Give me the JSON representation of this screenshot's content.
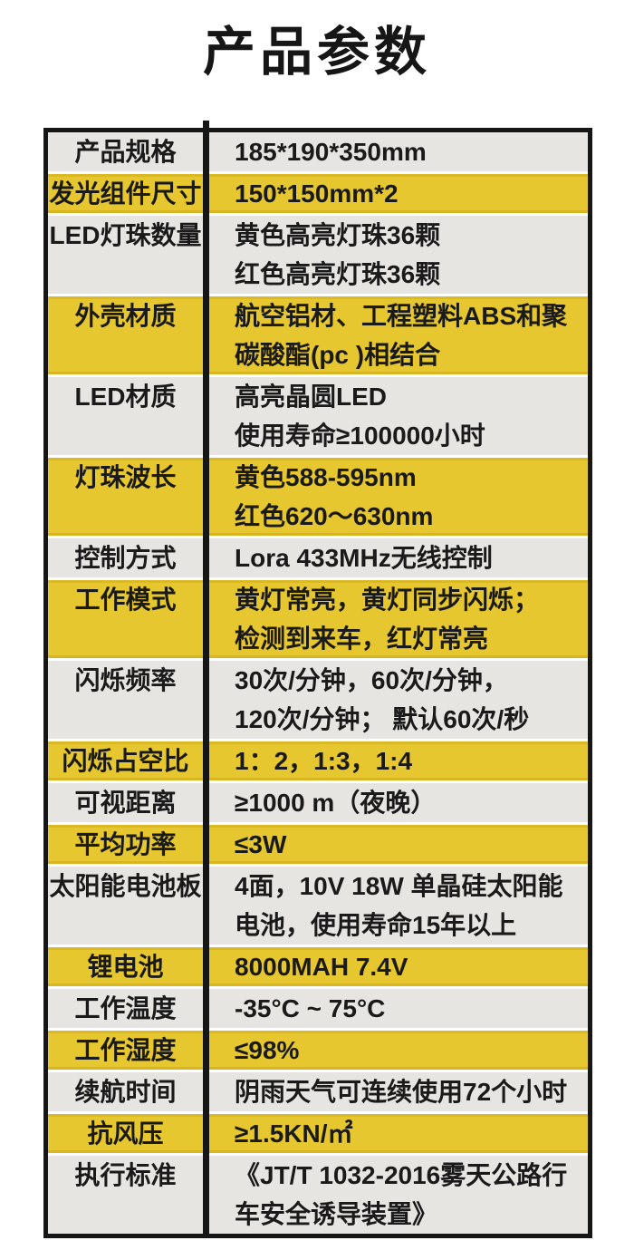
{
  "title": "产品参数",
  "colors": {
    "highlight_yellow": "#e6c72f",
    "row_gray": "#e6e5e2",
    "border_black": "#161616",
    "text_black": "#1a1a1a",
    "separator_white": "#ffffff"
  },
  "table": {
    "rows": [
      {
        "label": "产品规格",
        "lines": [
          "185*190*350mm"
        ],
        "highlight": false
      },
      {
        "label": "发光组件尺寸",
        "lines": [
          "150*150mm*2"
        ],
        "highlight": true
      },
      {
        "label": "LED灯珠数量",
        "lines": [
          "黄色高亮灯珠36颗",
          "红色高亮灯珠36颗"
        ],
        "highlight": false
      },
      {
        "label": "外壳材质",
        "lines": [
          "航空铝材、工程塑料ABS和聚",
          "碳酸酯(pc )相结合"
        ],
        "highlight": true
      },
      {
        "label": "LED材质",
        "lines": [
          "高亮晶圆LED",
          "使用寿命≥100000小时"
        ],
        "highlight": false
      },
      {
        "label": "灯珠波长",
        "lines": [
          "黄色588-595nm",
          "红色620～630nm"
        ],
        "highlight": true
      },
      {
        "label": "控制方式",
        "lines": [
          "Lora 433MHz无线控制"
        ],
        "highlight": false
      },
      {
        "label": "工作模式",
        "lines": [
          "黄灯常亮，黄灯同步闪烁；",
          "检测到来车，红灯常亮"
        ],
        "highlight": true
      },
      {
        "label": "闪烁频率",
        "lines": [
          "30次/分钟，60次/分钟，",
          "120次/分钟； 默认60次/秒"
        ],
        "highlight": false
      },
      {
        "label": "闪烁占空比",
        "lines": [
          "1：2，1:3，1:4"
        ],
        "highlight": true
      },
      {
        "label": "可视距离",
        "lines": [
          "≥1000 m（夜晚）"
        ],
        "highlight": false
      },
      {
        "label": "平均功率",
        "lines": [
          "≤3W"
        ],
        "highlight": true
      },
      {
        "label": "太阳能电池板",
        "lines": [
          "4面，10V 18W 单晶硅太阳能",
          "电池，使用寿命15年以上"
        ],
        "highlight": false
      },
      {
        "label": "锂电池",
        "lines": [
          "8000MAH 7.4V"
        ],
        "highlight": true
      },
      {
        "label": "工作温度",
        "lines": [
          "-35°C ~ 75°C"
        ],
        "highlight": false
      },
      {
        "label": "工作湿度",
        "lines": [
          "≤98%"
        ],
        "highlight": true
      },
      {
        "label": "续航时间",
        "lines": [
          "阴雨天气可连续使用72个小时"
        ],
        "highlight": false
      },
      {
        "label": "抗风压",
        "lines": [
          "≥1.5KN/㎡"
        ],
        "highlight": true
      },
      {
        "label": "执行标准",
        "lines": [
          "《JT/T 1032-2016雾天公路行",
          "车安全诱导装置》"
        ],
        "highlight": false
      }
    ]
  }
}
